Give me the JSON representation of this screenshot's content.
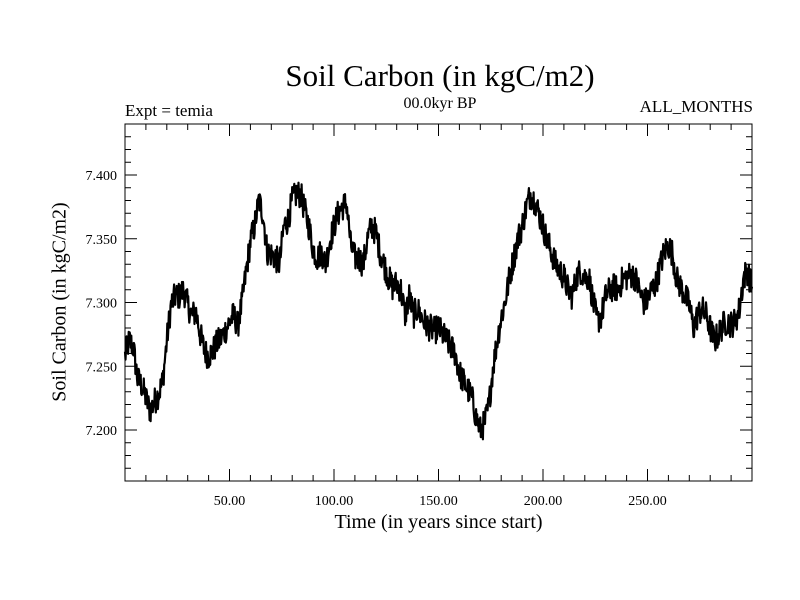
{
  "chart_data": {
    "type": "line",
    "title": "Soil Carbon (in kgC/m2)",
    "subtitle_left": "Expt = temia",
    "subtitle_center": "00.0kyr BP",
    "subtitle_right": "ALL_MONTHS",
    "xlabel": "Time (in years since start)",
    "ylabel": "Soil Carbon (in kgC/m2)",
    "xlim": [
      0,
      300
    ],
    "ylim": [
      7.16,
      7.44
    ],
    "x_ticks": [
      50,
      100,
      150,
      200,
      250
    ],
    "x_tick_labels": [
      "50.00",
      "100.00",
      "150.00",
      "200.00",
      "250.00"
    ],
    "y_ticks": [
      7.2,
      7.25,
      7.3,
      7.35,
      7.4
    ],
    "y_tick_labels": [
      "7.200",
      "7.250",
      "7.300",
      "7.350",
      "7.400"
    ],
    "grid": false,
    "legend": "none",
    "line_color": "#000000",
    "series": [
      {
        "x": [
          0,
          2,
          4,
          6,
          8,
          10,
          12,
          14,
          16,
          18,
          20,
          22,
          24,
          26,
          28,
          30,
          32,
          34,
          36,
          38,
          40,
          42,
          44,
          46,
          48,
          50,
          52,
          54,
          56,
          58,
          60,
          62,
          64,
          66,
          68,
          70,
          72,
          74,
          76,
          78,
          80,
          82,
          84,
          86,
          88,
          90,
          92,
          94,
          96,
          98,
          100,
          102,
          104,
          106,
          108,
          110,
          112,
          114,
          116,
          118,
          120,
          122,
          124,
          126,
          128,
          130,
          132,
          134,
          136,
          138,
          140,
          142,
          144,
          146,
          148,
          150,
          152,
          154,
          156,
          158,
          160,
          162,
          164,
          166,
          168,
          170,
          172,
          174,
          176,
          178,
          180,
          182,
          184,
          186,
          188,
          190,
          192,
          194,
          196,
          198,
          200,
          202,
          204,
          206,
          208,
          210,
          212,
          214,
          216,
          218,
          220,
          222,
          224,
          226,
          228,
          230,
          232,
          234,
          236,
          238,
          240,
          242,
          244,
          246,
          248,
          250,
          252,
          254,
          256,
          258,
          260,
          262,
          264,
          266,
          268,
          270,
          272,
          274,
          276,
          278,
          280,
          282,
          284,
          286,
          288,
          290,
          292,
          294,
          296,
          298,
          300
        ],
        "values": [
          7.258,
          7.27,
          7.265,
          7.24,
          7.235,
          7.225,
          7.215,
          7.222,
          7.228,
          7.238,
          7.27,
          7.298,
          7.305,
          7.305,
          7.31,
          7.298,
          7.29,
          7.292,
          7.275,
          7.262,
          7.258,
          7.262,
          7.268,
          7.272,
          7.278,
          7.285,
          7.29,
          7.282,
          7.3,
          7.325,
          7.348,
          7.36,
          7.38,
          7.37,
          7.34,
          7.338,
          7.335,
          7.33,
          7.36,
          7.365,
          7.38,
          7.385,
          7.385,
          7.372,
          7.36,
          7.342,
          7.335,
          7.34,
          7.33,
          7.348,
          7.36,
          7.37,
          7.375,
          7.378,
          7.345,
          7.335,
          7.335,
          7.33,
          7.35,
          7.36,
          7.355,
          7.34,
          7.33,
          7.32,
          7.312,
          7.315,
          7.31,
          7.29,
          7.305,
          7.29,
          7.295,
          7.288,
          7.283,
          7.28,
          7.278,
          7.28,
          7.275,
          7.27,
          7.265,
          7.26,
          7.245,
          7.238,
          7.232,
          7.225,
          7.21,
          7.2,
          7.205,
          7.218,
          7.248,
          7.27,
          7.288,
          7.302,
          7.32,
          7.335,
          7.35,
          7.36,
          7.375,
          7.385,
          7.38,
          7.37,
          7.36,
          7.348,
          7.34,
          7.33,
          7.325,
          7.32,
          7.31,
          7.305,
          7.32,
          7.325,
          7.32,
          7.32,
          7.3,
          7.285,
          7.29,
          7.305,
          7.31,
          7.312,
          7.31,
          7.318,
          7.32,
          7.322,
          7.32,
          7.31,
          7.3,
          7.302,
          7.31,
          7.315,
          7.328,
          7.34,
          7.345,
          7.338,
          7.318,
          7.312,
          7.305,
          7.298,
          7.28,
          7.29,
          7.295,
          7.29,
          7.28,
          7.27,
          7.275,
          7.282,
          7.285,
          7.283,
          7.285,
          7.295,
          7.32,
          7.325,
          7.31
        ]
      }
    ]
  }
}
